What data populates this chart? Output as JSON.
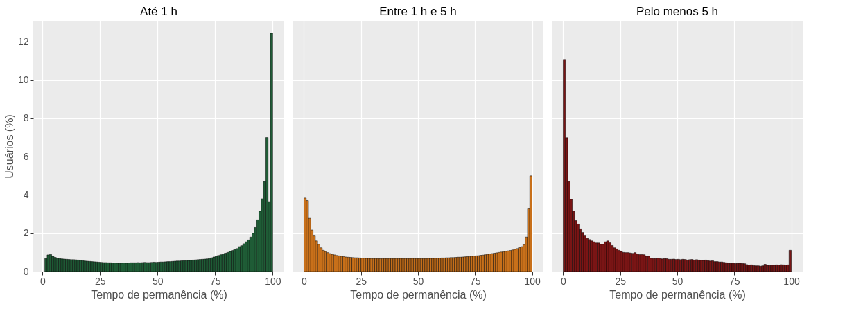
{
  "chart_data": [
    {
      "type": "histogram",
      "title": "Até 1 h",
      "xlabel": "Tempo de permanência (%)",
      "ylabel": "Usuários (%)",
      "color": "#1f5c36",
      "grid": true,
      "xlim": [
        -4,
        105
      ],
      "ylim": [
        0,
        13.1
      ],
      "xticks": [
        0,
        25,
        50,
        75,
        100
      ],
      "yticks": [
        0,
        2,
        4,
        6,
        8,
        10,
        12
      ],
      "bins": [
        0,
        1,
        2,
        3,
        4,
        5,
        6,
        7,
        8,
        9,
        10,
        11,
        12,
        13,
        14,
        15,
        16,
        17,
        18,
        19,
        20,
        21,
        22,
        23,
        24,
        25,
        26,
        27,
        28,
        29,
        30,
        31,
        32,
        33,
        34,
        35,
        36,
        37,
        38,
        39,
        40,
        41,
        42,
        43,
        44,
        45,
        46,
        47,
        48,
        49,
        50,
        51,
        52,
        53,
        54,
        55,
        56,
        57,
        58,
        59,
        60,
        61,
        62,
        63,
        64,
        65,
        66,
        67,
        68,
        69,
        70,
        71,
        72,
        73,
        74,
        75,
        76,
        77,
        78,
        79,
        80,
        81,
        82,
        83,
        84,
        85,
        86,
        87,
        88,
        89,
        90,
        91,
        92,
        93,
        94,
        95,
        96,
        97,
        98,
        99,
        100
      ],
      "values": [
        null,
        0.68,
        0.87,
        0.89,
        0.8,
        0.74,
        0.7,
        0.68,
        0.66,
        0.65,
        0.64,
        0.63,
        0.62,
        0.62,
        0.61,
        0.6,
        0.59,
        0.57,
        0.55,
        0.54,
        0.53,
        0.52,
        0.51,
        0.5,
        0.49,
        0.48,
        0.47,
        0.47,
        0.46,
        0.46,
        0.45,
        0.45,
        0.44,
        0.44,
        0.44,
        0.45,
        0.44,
        0.45,
        0.46,
        0.46,
        0.46,
        0.47,
        0.46,
        0.47,
        0.48,
        0.47,
        0.47,
        0.48,
        0.49,
        0.48,
        0.49,
        0.5,
        0.5,
        0.51,
        0.52,
        0.52,
        0.53,
        0.54,
        0.55,
        0.55,
        0.56,
        0.57,
        0.57,
        0.58,
        0.59,
        0.6,
        0.61,
        0.62,
        0.63,
        0.64,
        0.65,
        0.66,
        0.68,
        0.72,
        0.76,
        0.8,
        0.84,
        0.88,
        0.92,
        0.96,
        1.0,
        1.05,
        1.1,
        1.15,
        1.2,
        1.3,
        1.35,
        1.45,
        1.55,
        1.65,
        1.8,
        2.0,
        2.3,
        2.7,
        3.15,
        3.8,
        4.7,
        7.0,
        3.65,
        12.45
      ]
    },
    {
      "type": "histogram",
      "title": "Entre 1 h e 5 h",
      "xlabel": "Tempo de permanência (%)",
      "color": "#c8701a",
      "grid": true,
      "tick_labels": "x",
      "xlim": [
        -5,
        105
      ],
      "ylim": [
        0,
        13.1
      ],
      "xticks": [
        0,
        25,
        50,
        75,
        100
      ],
      "yticks": [
        0,
        2,
        4,
        6,
        8,
        10,
        12
      ],
      "bins": [
        0,
        1,
        2,
        3,
        4,
        5,
        6,
        7,
        8,
        9,
        10,
        11,
        12,
        13,
        14,
        15,
        16,
        17,
        18,
        19,
        20,
        21,
        22,
        23,
        24,
        25,
        26,
        27,
        28,
        29,
        30,
        31,
        32,
        33,
        34,
        35,
        36,
        37,
        38,
        39,
        40,
        41,
        42,
        43,
        44,
        45,
        46,
        47,
        48,
        49,
        50,
        51,
        52,
        53,
        54,
        55,
        56,
        57,
        58,
        59,
        60,
        61,
        62,
        63,
        64,
        65,
        66,
        67,
        68,
        69,
        70,
        71,
        72,
        73,
        74,
        75,
        76,
        77,
        78,
        79,
        80,
        81,
        82,
        83,
        84,
        85,
        86,
        87,
        88,
        89,
        90,
        91,
        92,
        93,
        94,
        95,
        96,
        97,
        98,
        99,
        100
      ],
      "values": [
        3.84,
        3.71,
        2.78,
        2.17,
        1.86,
        1.6,
        1.42,
        1.24,
        1.11,
        1.05,
        0.99,
        0.94,
        0.9,
        0.87,
        0.84,
        0.82,
        0.8,
        0.78,
        0.76,
        0.75,
        0.74,
        0.73,
        0.72,
        0.72,
        0.71,
        0.7,
        0.7,
        0.69,
        0.69,
        0.68,
        0.68,
        0.68,
        0.68,
        0.67,
        0.68,
        0.68,
        0.68,
        0.68,
        0.68,
        0.68,
        0.68,
        0.68,
        0.69,
        0.68,
        0.68,
        0.68,
        0.68,
        0.69,
        0.68,
        0.68,
        0.68,
        0.68,
        0.68,
        0.68,
        0.69,
        0.69,
        0.69,
        0.7,
        0.7,
        0.7,
        0.71,
        0.71,
        0.72,
        0.72,
        0.73,
        0.73,
        0.74,
        0.75,
        0.75,
        0.76,
        0.77,
        0.78,
        0.79,
        0.8,
        0.81,
        0.82,
        0.83,
        0.85,
        0.86,
        0.88,
        0.9,
        0.92,
        0.94,
        0.96,
        0.98,
        1.0,
        1.02,
        1.04,
        1.06,
        1.08,
        1.1,
        1.13,
        1.16,
        1.2,
        1.25,
        1.3,
        1.4,
        1.8,
        3.28,
        5.0
      ]
    },
    {
      "type": "histogram",
      "title": "Pelo menos 5 h",
      "xlabel": "Tempo de permanência (%)",
      "color": "#7a1515",
      "grid": true,
      "tick_labels": "x",
      "xlim": [
        -5,
        105
      ],
      "ylim": [
        0,
        13.1
      ],
      "xticks": [
        0,
        25,
        50,
        75,
        100
      ],
      "yticks": [
        0,
        2,
        4,
        6,
        8,
        10,
        12
      ],
      "bins": [
        0,
        1,
        2,
        3,
        4,
        5,
        6,
        7,
        8,
        9,
        10,
        11,
        12,
        13,
        14,
        15,
        16,
        17,
        18,
        19,
        20,
        21,
        22,
        23,
        24,
        25,
        26,
        27,
        28,
        29,
        30,
        31,
        32,
        33,
        34,
        35,
        36,
        37,
        38,
        39,
        40,
        41,
        42,
        43,
        44,
        45,
        46,
        47,
        48,
        49,
        50,
        51,
        52,
        53,
        54,
        55,
        56,
        57,
        58,
        59,
        60,
        61,
        62,
        63,
        64,
        65,
        66,
        67,
        68,
        69,
        70,
        71,
        72,
        73,
        74,
        75,
        76,
        77,
        78,
        79,
        80,
        81,
        82,
        83,
        84,
        85,
        86,
        87,
        88,
        89,
        90,
        91,
        92,
        93,
        94,
        95,
        96,
        97,
        98,
        99,
        100
      ],
      "values": [
        11.08,
        6.99,
        4.7,
        3.77,
        3.16,
        2.66,
        2.48,
        2.23,
        2.04,
        1.86,
        1.73,
        1.67,
        1.6,
        1.55,
        1.49,
        1.49,
        1.42,
        1.42,
        1.55,
        1.6,
        1.5,
        1.36,
        1.24,
        1.18,
        1.11,
        1.05,
        1.0,
        0.99,
        0.99,
        0.97,
        0.95,
        0.99,
        0.92,
        0.89,
        0.89,
        0.88,
        0.8,
        0.8,
        0.7,
        0.68,
        0.68,
        0.7,
        0.68,
        0.66,
        0.68,
        0.67,
        0.64,
        0.64,
        0.65,
        0.63,
        0.64,
        0.62,
        0.64,
        0.63,
        0.6,
        0.62,
        0.63,
        0.6,
        0.62,
        0.6,
        0.59,
        0.58,
        0.6,
        0.57,
        0.55,
        0.56,
        0.52,
        0.52,
        0.5,
        0.5,
        0.48,
        0.46,
        0.44,
        0.43,
        0.45,
        0.42,
        0.43,
        0.44,
        0.42,
        0.41,
        0.36,
        0.34,
        0.35,
        0.31,
        0.3,
        0.3,
        0.28,
        0.3,
        0.38,
        0.33,
        0.32,
        0.34,
        0.33,
        0.35,
        0.34,
        0.36,
        0.35,
        0.34,
        0.35,
        1.11
      ]
    }
  ]
}
